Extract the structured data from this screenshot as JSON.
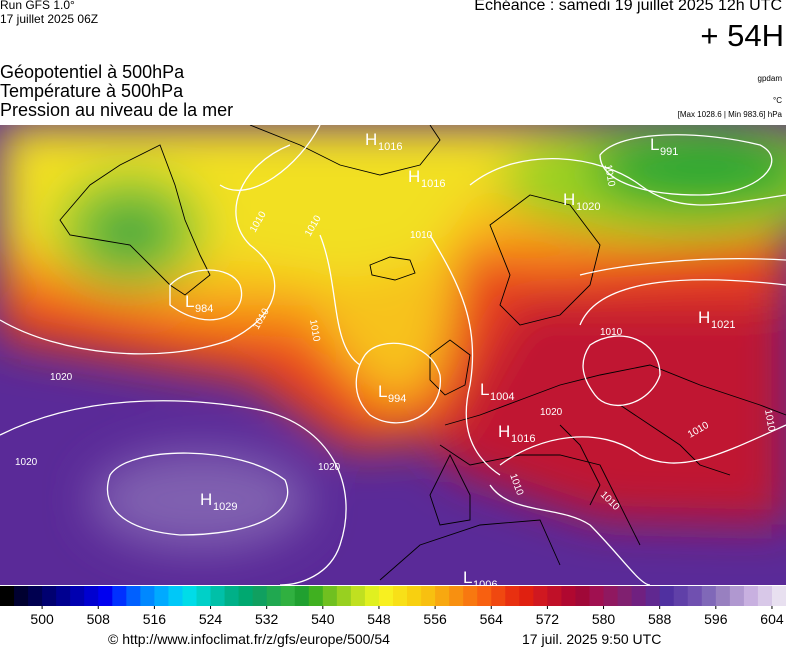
{
  "header": {
    "run": "Run GFS 1.0°",
    "run_date": "17 juillet 2025 06Z",
    "valid": "Echéance : samedi 19 juillet 2025 12h UTC",
    "lead": "+ 54H",
    "fields": [
      "Géopotentiel à 500hPa",
      "Température à 500hPa",
      "Pression au niveau de la mer"
    ],
    "units": [
      "gpdam",
      "°C",
      "[Max 1028.6 | Min 983.6] hPa"
    ]
  },
  "pressure_systems": [
    {
      "kind": "H",
      "value": "1016"
    },
    {
      "kind": "H",
      "value": "1016"
    },
    {
      "kind": "H",
      "value": "1020"
    },
    {
      "kind": "L",
      "value": "991"
    },
    {
      "kind": "L",
      "value": "984"
    },
    {
      "kind": "H",
      "value": "1021"
    },
    {
      "kind": "L",
      "value": "994"
    },
    {
      "kind": "L",
      "value": "1004"
    },
    {
      "kind": "H",
      "value": "1016"
    },
    {
      "kind": "H",
      "value": "1029"
    },
    {
      "kind": "L",
      "value": "1006"
    }
  ],
  "isobar_labels": [
    "1020",
    "1010",
    "1010",
    "1010",
    "1010",
    "1010",
    "1010",
    "1020",
    "1020",
    "1010",
    "1010",
    "1010",
    "1010",
    "1010",
    "1020"
  ],
  "colorbar": {
    "lim": [
      494,
      606
    ],
    "ticks": [
      500,
      508,
      516,
      524,
      532,
      540,
      548,
      556,
      564,
      572,
      580,
      588,
      596,
      604
    ],
    "colors": [
      "#000000",
      "#000030",
      "#000050",
      "#000070",
      "#000090",
      "#0000b0",
      "#0000d0",
      "#0000f0",
      "#0030ff",
      "#0060ff",
      "#0088ff",
      "#00aaff",
      "#00c8f8",
      "#00dce8",
      "#00d0c8",
      "#00c0a8",
      "#00b088",
      "#00a870",
      "#10a060",
      "#20a850",
      "#30b040",
      "#20a030",
      "#40b020",
      "#70c020",
      "#98d020",
      "#c0e020",
      "#e0f020",
      "#f8f020",
      "#f8e018",
      "#f8d010",
      "#f8c010",
      "#f8a810",
      "#f89010",
      "#f87810",
      "#f86010",
      "#f04810",
      "#e83010",
      "#e02010",
      "#d01820",
      "#c01028",
      "#b00830",
      "#a00838",
      "#a01050",
      "#901860",
      "#802070",
      "#702080",
      "#602890",
      "#5030a0",
      "#6040a8",
      "#7050b0",
      "#8068b8",
      "#9880c0",
      "#b098d0",
      "#c8b0e0",
      "#d8c8e8",
      "#e8e0f0"
    ]
  },
  "footer": {
    "source": "© http://www.infoclimat.fr/z/gfs/europe/500/54",
    "issued": "17 juil. 2025  9:50 UTC"
  }
}
